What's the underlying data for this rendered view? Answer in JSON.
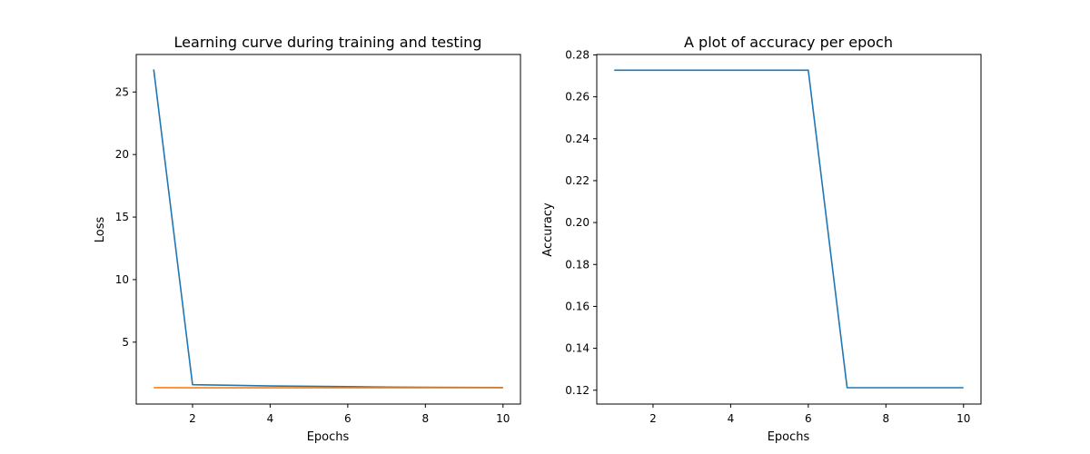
{
  "chart_data": [
    {
      "type": "line",
      "title": "Learning curve during training and testing",
      "xlabel": "Epochs",
      "ylabel": "Loss",
      "xlim": [
        0.55,
        10.45
      ],
      "ylim": [
        0.05,
        28.0
      ],
      "xticks": [
        2,
        4,
        6,
        8,
        10
      ],
      "yticks": [
        5,
        10,
        15,
        20,
        25
      ],
      "x": [
        1,
        2,
        3,
        4,
        5,
        6,
        7,
        8,
        9,
        10
      ],
      "series": [
        {
          "color": "#1f77b4",
          "values": [
            26.8,
            1.6,
            1.55,
            1.5,
            1.47,
            1.44,
            1.41,
            1.39,
            1.38,
            1.37
          ]
        },
        {
          "color": "#ff7f0e",
          "values": [
            1.36,
            1.35,
            1.35,
            1.35,
            1.35,
            1.35,
            1.35,
            1.35,
            1.35,
            1.35
          ]
        }
      ],
      "legend": false,
      "grid": false
    },
    {
      "type": "line",
      "title": "A plot of accuracy per epoch",
      "xlabel": "Epochs",
      "ylabel": "Accuracy",
      "xlim": [
        0.55,
        10.45
      ],
      "ylim": [
        0.1134,
        0.2802
      ],
      "xticks": [
        2,
        4,
        6,
        8,
        10
      ],
      "yticks": [
        0.12,
        0.14,
        0.16,
        0.18,
        0.2,
        0.22,
        0.24,
        0.26,
        0.28
      ],
      "ytick_labels": [
        "0.12",
        "0.14",
        "0.16",
        "0.18",
        "0.20",
        "0.22",
        "0.24",
        "0.26",
        "0.28"
      ],
      "x": [
        1,
        2,
        3,
        4,
        5,
        6,
        7,
        8,
        9,
        10
      ],
      "series": [
        {
          "color": "#1f77b4",
          "values": [
            0.2727,
            0.2727,
            0.2727,
            0.2727,
            0.2727,
            0.2727,
            0.1212,
            0.1212,
            0.1212,
            0.1212
          ]
        }
      ],
      "legend": false,
      "grid": false
    }
  ]
}
